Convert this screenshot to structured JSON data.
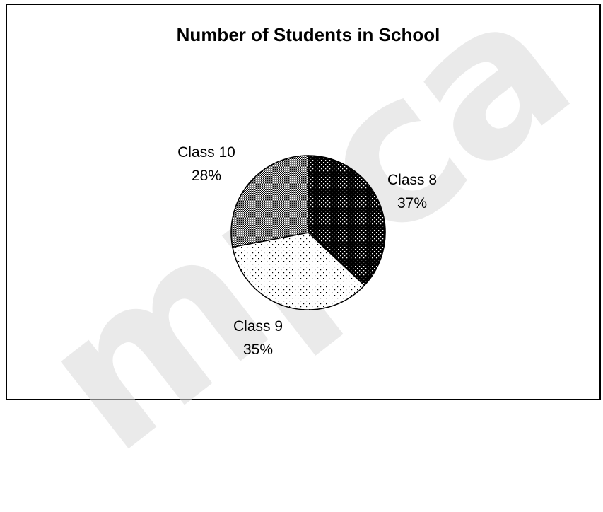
{
  "chart_data": {
    "type": "pie",
    "title": "Number of Students in School",
    "slices": [
      {
        "label": "Class 8",
        "value": 37,
        "value_label": "37%",
        "pattern": "dark-dots",
        "pattern_fg": "#ffffff",
        "pattern_bg": "#000000"
      },
      {
        "label": "Class 9",
        "value": 35,
        "value_label": "35%",
        "pattern": "light-dots",
        "pattern_fg": "#000000",
        "pattern_bg": "#ffffff"
      },
      {
        "label": "Class 10",
        "value": 28,
        "value_label": "28%",
        "pattern": "checker",
        "pattern_fg": "#000000",
        "pattern_bg": "#ffffff"
      }
    ],
    "legend": "none",
    "labels_position": "outside"
  },
  "watermark": {
    "text": "mpca"
  },
  "colors": {
    "background": "#ffffff",
    "border": "#000000",
    "text": "#000000",
    "watermark": "#d9d9d9"
  }
}
